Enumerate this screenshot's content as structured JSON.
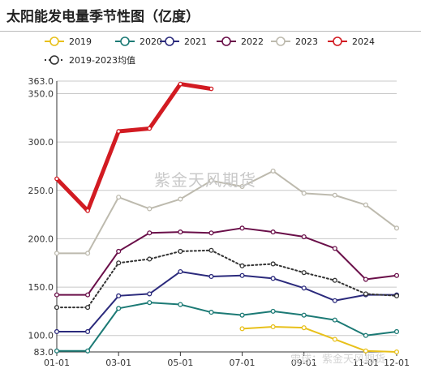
{
  "title": "太阳能发电量季节性图（亿度）",
  "watermark": "紫金天风期货",
  "watermark2": "雪球：紫金天风期货",
  "chart_data": {
    "type": "line",
    "title": "太阳能发电量季节性图（亿度）",
    "x": [
      "01-01",
      "02-01",
      "03-01",
      "04-01",
      "05-01",
      "06-01",
      "07-01",
      "08-01",
      "09-01",
      "10-01",
      "11-01",
      "12-01"
    ],
    "x_ticks": [
      "01-01",
      "03-01",
      "05-01",
      "07-01",
      "09-01",
      "11-01",
      "12-01"
    ],
    "y_ticks": [
      83.0,
      100.0,
      150.0,
      200.0,
      250.0,
      300.0,
      350.0,
      363.0
    ],
    "ylim": [
      83,
      363
    ],
    "grid": "horizontal",
    "legend_position": "top",
    "series": [
      {
        "name": "2019",
        "color": "#e8c01a",
        "dashed": false,
        "width": 2,
        "values": [
          null,
          null,
          null,
          null,
          null,
          null,
          107,
          109,
          108,
          96,
          84,
          83
        ]
      },
      {
        "name": "2020",
        "color": "#1c7a75",
        "dashed": false,
        "width": 2,
        "values": [
          84,
          84,
          128,
          134,
          132,
          124,
          121,
          125,
          121,
          116,
          100,
          104
        ]
      },
      {
        "name": "2021",
        "color": "#2b2a7c",
        "dashed": false,
        "width": 2,
        "values": [
          104,
          104,
          141,
          143,
          166,
          161,
          162,
          159,
          149,
          136,
          142,
          142
        ]
      },
      {
        "name": "2022",
        "color": "#6a0f49",
        "dashed": false,
        "width": 2,
        "values": [
          142,
          142,
          187,
          206,
          207,
          206,
          211,
          207,
          202,
          190,
          158,
          162
        ]
      },
      {
        "name": "2023",
        "color": "#bdbaae",
        "dashed": false,
        "width": 2,
        "values": [
          185,
          185,
          243,
          231,
          241,
          260,
          254,
          270,
          247,
          245,
          235,
          211
        ]
      },
      {
        "name": "2024",
        "color": "#d21b22",
        "dashed": false,
        "width": 5,
        "values": [
          262,
          229,
          311,
          314,
          360,
          355,
          null,
          null,
          null,
          null,
          null,
          null
        ]
      },
      {
        "name": "2019-2023均值",
        "color": "#333333",
        "dashed": true,
        "width": 2,
        "values": [
          129,
          129,
          175,
          179,
          187,
          188,
          172,
          174,
          165,
          157,
          143,
          141
        ]
      }
    ]
  }
}
